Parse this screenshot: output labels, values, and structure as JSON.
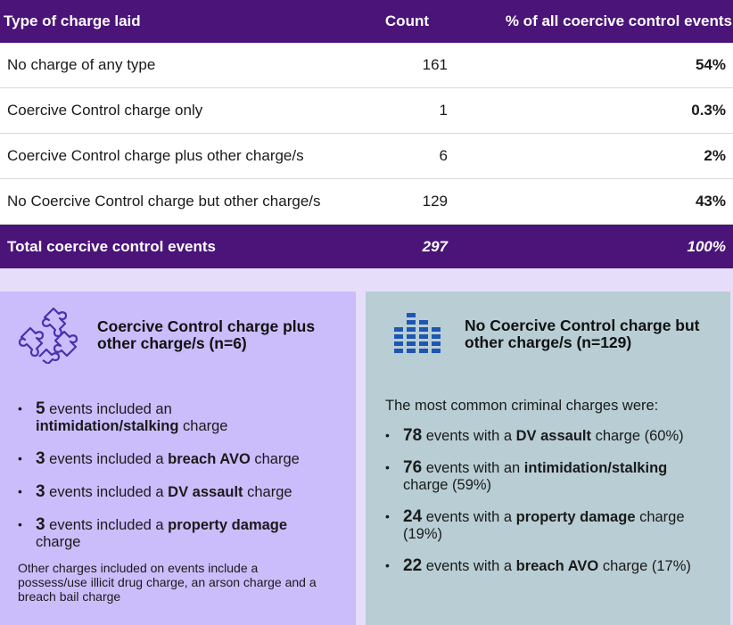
{
  "table": {
    "headers": [
      "Type of charge laid",
      "Count",
      "% of all coercive control events"
    ],
    "rows": [
      {
        "type": "No charge of any type",
        "count": "161",
        "pct": "54%"
      },
      {
        "type": "Coercive Control charge only",
        "count": "1",
        "pct": "0.3%"
      },
      {
        "type": "Coercive Control charge plus other charge/s",
        "count": "6",
        "pct": "2%"
      },
      {
        "type": "No Coercive Control charge but other charge/s",
        "count": "129",
        "pct": "43%"
      }
    ],
    "total": {
      "type": "Total coercive control events",
      "count": "297",
      "pct": "100%"
    }
  },
  "left_panel": {
    "icon": "puzzle-icon",
    "title": "Coercive Control charge plus other charge/s (n=6)",
    "items": [
      {
        "num": "5",
        "pre": " events included an ",
        "bold": "intimidation/stalking",
        "post": " charge"
      },
      {
        "num": "3",
        "pre": " events included a ",
        "bold": "breach AVO",
        "post": " charge"
      },
      {
        "num": "3",
        "pre": " events included a ",
        "bold": "DV assault",
        "post": " charge"
      },
      {
        "num": "3",
        "pre": " events included a ",
        "bold": "property damage",
        "post": " charge"
      }
    ],
    "note": "Other charges included on events include a possess/use illicit drug charge, an arson charge and a breach bail charge"
  },
  "right_panel": {
    "icon": "bar-chart-icon",
    "title": "No Coercive Control charge but other charge/s (n=129)",
    "intro": "The most common criminal charges were:",
    "items": [
      {
        "num": "78",
        "pre": " events with a ",
        "bold": "DV assault",
        "post": " charge (60%)"
      },
      {
        "num": "76",
        "pre": " events with an ",
        "bold": "intimidation/stalking",
        "post": " charge (59%)"
      },
      {
        "num": "24",
        "pre": " events with a ",
        "bold": "property damage",
        "post": " charge (19%)"
      },
      {
        "num": "22",
        "pre": " events with a ",
        "bold": "breach AVO",
        "post": " charge (17%)"
      }
    ]
  },
  "colors": {
    "header_purple": "#4a1478",
    "left_panel_bg": "#cbbdfb",
    "right_panel_bg": "#b8ced4",
    "strip_bg": "#e6ddfb",
    "icon_purple": "#4a2fb0",
    "icon_blue": "#1f56b4"
  }
}
